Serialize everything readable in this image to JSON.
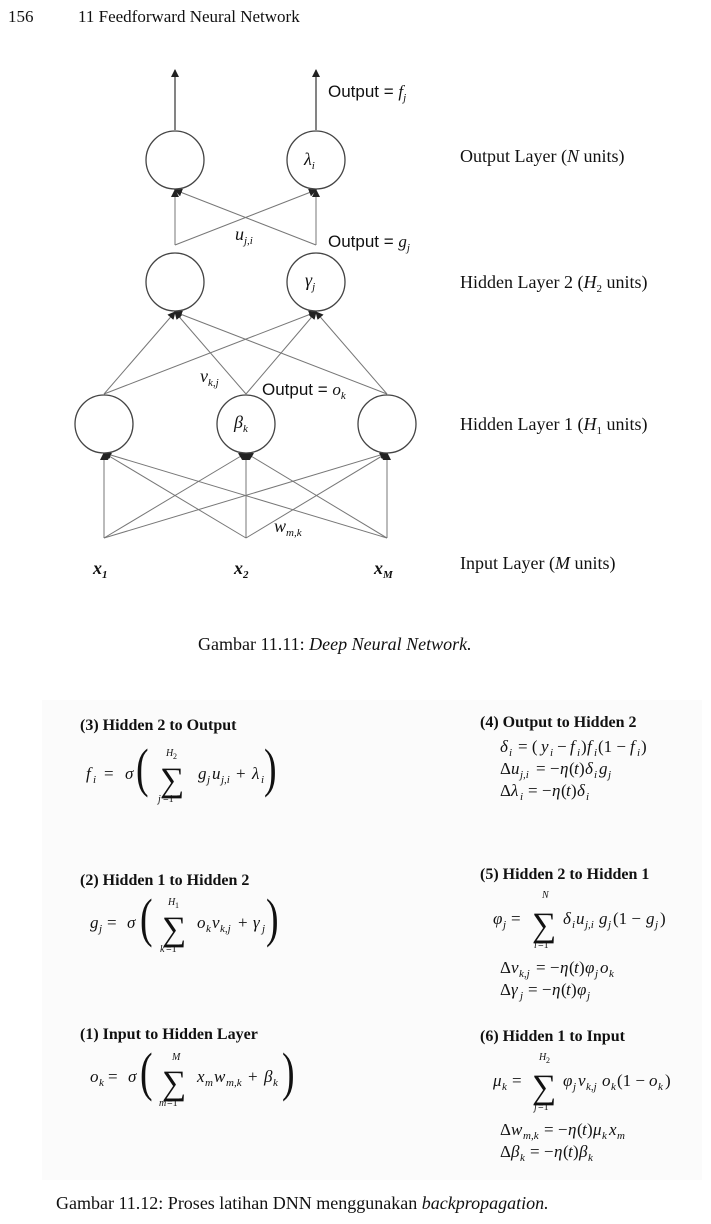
{
  "header": {
    "page_number": "156",
    "chapter": "11 Feedforward Neural Network"
  },
  "figure1": {
    "caption_prefix": "Gambar 11.11: ",
    "caption_title": "Deep Neural Network.",
    "layer_labels": {
      "output": [
        "Output Layer (",
        "N",
        " units)"
      ],
      "hidden2": [
        "Hidden Layer 2 (",
        "H",
        "2",
        " units)"
      ],
      "hidden1": [
        "Hidden Layer 1 (",
        "H",
        "1",
        " units)"
      ],
      "input": [
        "Input Layer (",
        "M",
        " units)"
      ]
    },
    "node_labels": {
      "lambda": [
        "λ",
        "i"
      ],
      "gamma": [
        "γ",
        "j"
      ],
      "beta": [
        "β",
        "k"
      ]
    },
    "edge_labels": {
      "u": [
        "u",
        "j,i"
      ],
      "v": [
        "v",
        "k,j"
      ],
      "w": [
        "w",
        "m,k"
      ]
    },
    "output_labels": {
      "f": [
        "Output = ",
        "f",
        "j"
      ],
      "g": [
        "Output = ",
        "g",
        "j"
      ],
      "o": [
        "Output = ",
        "o",
        "k"
      ]
    },
    "inputs": [
      [
        "x",
        "1"
      ],
      [
        "x",
        "2"
      ],
      [
        "x",
        "M"
      ]
    ]
  },
  "figure2": {
    "caption_prefix": "Gambar 11.12: Proses latihan DNN menggunakan ",
    "caption_title": "backpropagation.",
    "sections": {
      "s3": "(3) Hidden 2 to Output",
      "s4": "(4) Output to Hidden 2",
      "s2": "(2) Hidden 1 to Hidden 2",
      "s5": "(5) Hidden 2 to Hidden 1",
      "s1": "(1) Input to Hidden Layer",
      "s6": "(6) Hidden 1 to Input"
    }
  }
}
